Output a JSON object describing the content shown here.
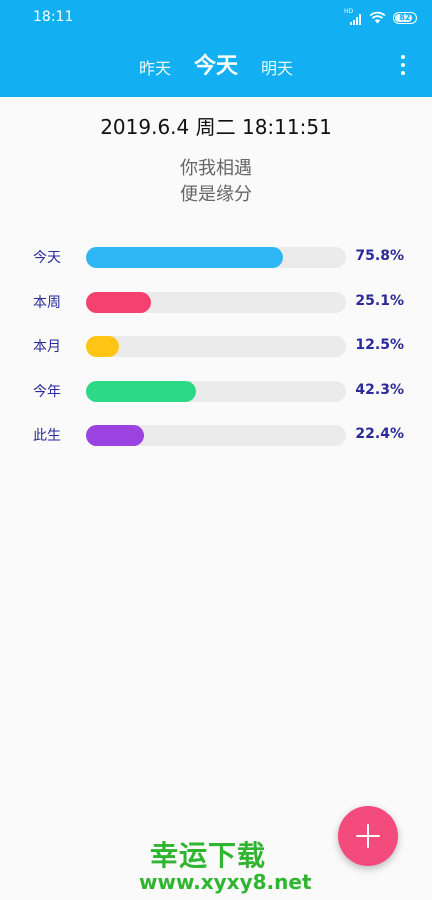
{
  "statusbar": {
    "time": "18:11",
    "network_badge": "HD",
    "battery": "82"
  },
  "tabs": [
    {
      "label": "昨天"
    },
    {
      "label": "今天"
    },
    {
      "label": "明天"
    }
  ],
  "datetime": "2019.6.4 周二 18:11:51",
  "motto": {
    "line1": "你我相遇",
    "line2": "便是缘分"
  },
  "progress": [
    {
      "label": "今天",
      "value": "75.8%",
      "fraction": 0.758,
      "color": "#2fb7f5"
    },
    {
      "label": "本周",
      "value": "25.1%",
      "fraction": 0.251,
      "color": "#f5416f"
    },
    {
      "label": "本月",
      "value": "12.5%",
      "fraction": 0.125,
      "color": "#ffc414"
    },
    {
      "label": "今年",
      "value": "42.3%",
      "fraction": 0.423,
      "color": "#2bd987"
    },
    {
      "label": "此生",
      "value": "22.4%",
      "fraction": 0.224,
      "color": "#9a43e0"
    }
  ],
  "watermark": {
    "title": "幸运下载",
    "url": "www.xyxy8.net"
  }
}
